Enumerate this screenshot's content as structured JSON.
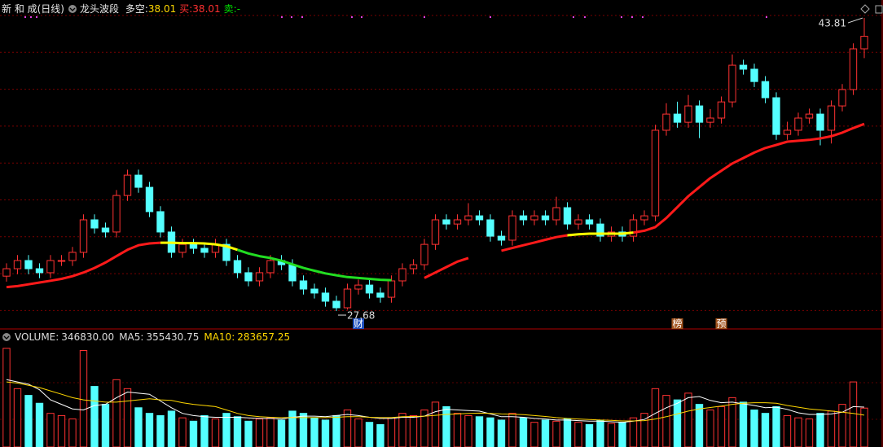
{
  "header": {
    "stock": "新 和 成(日线)",
    "indicator": "龙头波段",
    "items": [
      {
        "label": "多空:",
        "value": "38.01",
        "color": "#ffd700"
      },
      {
        "label": "买:",
        "value": "38.01",
        "color": "#ff3030"
      },
      {
        "label": "卖:",
        "value": "-",
        "color": "#00e000"
      }
    ]
  },
  "chart_data": {
    "type": "candlestick",
    "up_color": "#ff3232",
    "down_color": "#54ffff",
    "ylim": [
      26.74,
      44.35
    ],
    "open": [
      29.6,
      30.01,
      30.46,
      30.01,
      29.79,
      30.46,
      30.46,
      30.91,
      32.7,
      32.25,
      32.03,
      34.04,
      35.16,
      34.49,
      33.15,
      32.03,
      30.91,
      31.35,
      31.13,
      30.91,
      31.35,
      30.46,
      29.79,
      29.34,
      29.79,
      30.46,
      30.23,
      29.34,
      28.89,
      28.67,
      28.22,
      27.86,
      28.89,
      29.11,
      28.67,
      28.44,
      29.34,
      30.01,
      30.23,
      31.35,
      32.7,
      32.47,
      32.7,
      32.92,
      32.7,
      31.8,
      31.58,
      32.92,
      32.7,
      32.92,
      32.7,
      33.37,
      32.47,
      32.7,
      32.47,
      31.8,
      32.03,
      31.8,
      32.7,
      32.92,
      37.63,
      38.52,
      38.07,
      38.97,
      38.07,
      38.3,
      39.19,
      41.21,
      40.99,
      40.31,
      39.42,
      37.4,
      37.63,
      38.3,
      38.52,
      37.63,
      38.97,
      39.87,
      42.11
    ],
    "high": [
      30.31,
      30.76,
      30.76,
      30.31,
      30.76,
      30.76,
      31.21,
      33.0,
      33.0,
      32.55,
      34.34,
      35.46,
      35.46,
      34.79,
      33.45,
      32.33,
      31.65,
      31.65,
      31.43,
      31.65,
      31.65,
      30.76,
      30.09,
      30.09,
      30.76,
      30.76,
      30.53,
      29.64,
      29.19,
      28.97,
      28.52,
      29.19,
      29.41,
      29.41,
      28.97,
      29.64,
      30.31,
      30.53,
      31.65,
      33.0,
      33.0,
      33.0,
      33.62,
      33.22,
      33.0,
      32.1,
      33.22,
      33.22,
      33.22,
      33.22,
      33.97,
      33.67,
      33.0,
      33.0,
      32.77,
      32.33,
      32.33,
      33.0,
      33.22,
      37.93,
      39.12,
      39.2,
      39.57,
      39.27,
      38.8,
      39.49,
      41.8,
      41.51,
      41.29,
      40.61,
      39.72,
      38.1,
      38.6,
      38.82,
      38.82,
      39.27,
      40.17,
      42.41,
      43.81
    ],
    "low": [
      29.3,
      29.71,
      29.71,
      29.49,
      29.49,
      30.16,
      30.16,
      30.61,
      31.95,
      31.73,
      31.73,
      33.74,
      34.19,
      32.85,
      31.73,
      30.61,
      30.61,
      30.83,
      30.61,
      30.61,
      30.16,
      29.49,
      29.04,
      29.04,
      29.49,
      29.93,
      29.04,
      28.59,
      28.37,
      27.92,
      27.68,
      27.76,
      28.59,
      28.37,
      28.14,
      28.14,
      29.04,
      29.71,
      29.93,
      31.05,
      32.17,
      32.17,
      32.4,
      32.4,
      31.5,
      31.28,
      31.28,
      32.4,
      32.4,
      32.4,
      32.4,
      32.17,
      32.17,
      32.17,
      31.5,
      31.5,
      31.5,
      31.5,
      32.4,
      32.62,
      37.33,
      37.77,
      37.77,
      37.2,
      37.77,
      38.0,
      38.89,
      40.69,
      40.01,
      39.12,
      37.1,
      37.1,
      37.33,
      38.0,
      36.8,
      36.9,
      38.67,
      39.57,
      41.6
    ],
    "close": [
      30.01,
      30.46,
      30.01,
      29.79,
      30.46,
      30.46,
      30.91,
      32.7,
      32.25,
      32.03,
      34.04,
      35.16,
      34.49,
      33.15,
      32.03,
      30.91,
      31.35,
      31.13,
      30.91,
      31.35,
      30.46,
      29.79,
      29.34,
      29.79,
      30.46,
      30.23,
      29.34,
      28.89,
      28.67,
      28.22,
      27.86,
      28.89,
      29.11,
      28.67,
      28.44,
      29.34,
      30.01,
      30.23,
      31.35,
      32.7,
      32.47,
      32.7,
      32.92,
      32.7,
      31.8,
      31.58,
      32.92,
      32.7,
      32.92,
      32.7,
      33.37,
      32.47,
      32.7,
      32.47,
      31.8,
      32.03,
      31.8,
      32.7,
      32.92,
      37.63,
      38.52,
      38.07,
      38.97,
      38.07,
      38.3,
      39.19,
      41.21,
      40.99,
      40.31,
      39.42,
      37.4,
      37.63,
      38.3,
      38.52,
      37.63,
      38.97,
      39.87,
      42.11,
      42.8
    ],
    "trend": {
      "values": [
        29.0,
        29.05,
        29.15,
        29.25,
        29.35,
        29.45,
        29.6,
        29.8,
        30.05,
        30.35,
        30.7,
        31.05,
        31.3,
        31.4,
        31.44,
        31.44,
        31.42,
        31.42,
        31.4,
        31.35,
        31.25,
        31.05,
        30.85,
        30.7,
        30.6,
        30.45,
        30.25,
        30.05,
        29.9,
        29.75,
        29.65,
        29.55,
        29.5,
        29.45,
        29.4,
        29.38,
        null,
        null,
        29.5,
        29.8,
        30.1,
        30.4,
        30.6,
        null,
        null,
        31.0,
        31.15,
        31.3,
        31.45,
        31.6,
        31.75,
        31.85,
        31.9,
        31.94,
        31.94,
        31.94,
        31.94,
        32.0,
        32.1,
        32.3,
        32.8,
        33.4,
        34.0,
        34.5,
        35.0,
        35.4,
        35.8,
        36.1,
        36.4,
        36.65,
        36.82,
        37.0,
        37.05,
        37.1,
        37.18,
        37.3,
        37.5,
        37.75,
        37.98
      ],
      "segments": [
        {
          "start": 0,
          "end": 14,
          "color": "#ff1a1a"
        },
        {
          "start": 14,
          "end": 21,
          "color": "#ffff00"
        },
        {
          "start": 21,
          "end": 35,
          "color": "#22dd22"
        },
        {
          "start": 38,
          "end": 42,
          "color": "#ff1a1a"
        },
        {
          "start": 45,
          "end": 51,
          "color": "#ff1a1a"
        },
        {
          "start": 51,
          "end": 57,
          "color": "#ffff00"
        },
        {
          "start": 57,
          "end": 78,
          "color": "#ff1a1a"
        }
      ]
    },
    "annotations": [
      {
        "index": 78,
        "value": 43.81
      },
      {
        "index": 30,
        "value": 27.68
      }
    ],
    "badges": [
      {
        "index": 32,
        "label": "财",
        "color": "#1e4fbf"
      },
      {
        "index": 61,
        "label": "榜",
        "color": "#a0521d"
      },
      {
        "index": 65,
        "label": "预",
        "color": "#a0521d"
      }
    ]
  },
  "volume": {
    "items": [
      {
        "label": "VOLUME:",
        "value": "346830.00",
        "color": "#dddddd"
      },
      {
        "label": "MA5:",
        "value": 355430.75,
        "color": "#dddddd"
      },
      {
        "label": "MA10:",
        "value": 283657.25,
        "color": "#ffd700"
      }
    ],
    "ylim": [
      0,
      900000
    ],
    "values": [
      880000,
      520000,
      460000,
      390000,
      300000,
      280000,
      250000,
      860000,
      540000,
      380000,
      600000,
      520000,
      350000,
      300000,
      280000,
      320000,
      260000,
      230000,
      280000,
      250000,
      300000,
      270000,
      230000,
      250000,
      260000,
      240000,
      320000,
      300000,
      260000,
      240000,
      280000,
      330000,
      250000,
      220000,
      200000,
      260000,
      300000,
      280000,
      330000,
      400000,
      360000,
      300000,
      280000,
      270000,
      260000,
      240000,
      300000,
      260000,
      220000,
      240000,
      230000,
      250000,
      220000,
      200000,
      240000,
      210000,
      220000,
      260000,
      300000,
      520000,
      460000,
      420000,
      480000,
      380000,
      330000,
      360000,
      440000,
      400000,
      330000,
      300000,
      360000,
      280000,
      260000,
      250000,
      300000,
      320000,
      380000,
      580000,
      346830
    ],
    "ma5": {
      "color": "#ffffff",
      "values": [
        600000,
        580000,
        560000,
        510000,
        420000,
        380000,
        340000,
        330000,
        370000,
        380000,
        440000,
        490000,
        480000,
        470000,
        410000,
        350000,
        300000,
        280000,
        270000,
        265000,
        265000,
        265000,
        260000,
        255000,
        255000,
        250000,
        265000,
        275000,
        275000,
        270000,
        280000,
        290000,
        280000,
        265000,
        255000,
        255000,
        265000,
        265000,
        275000,
        315000,
        335000,
        330000,
        325000,
        320000,
        295000,
        270000,
        270000,
        265000,
        255000,
        250000,
        240000,
        240000,
        235000,
        230000,
        230000,
        225000,
        220000,
        230000,
        245000,
        300000,
        350000,
        390000,
        440000,
        450000,
        415000,
        395000,
        400000,
        385000,
        370000,
        350000,
        355000,
        335000,
        305000,
        290000,
        290000,
        295000,
        310000,
        360000,
        355430.75
      ]
    },
    "ma10": {
      "color": "#ffd700",
      "values": [
        580000,
        570000,
        550000,
        530000,
        500000,
        470000,
        440000,
        420000,
        410000,
        400000,
        400000,
        410000,
        420000,
        430000,
        420000,
        415000,
        395000,
        380000,
        370000,
        360000,
        330000,
        300000,
        280000,
        270000,
        265000,
        262000,
        262000,
        262000,
        262000,
        262000,
        265000,
        270000,
        270000,
        265000,
        262000,
        262000,
        270000,
        272000,
        275000,
        282000,
        290000,
        295000,
        300000,
        302000,
        300000,
        295000,
        292000,
        288000,
        280000,
        272000,
        262000,
        255000,
        250000,
        245000,
        240000,
        237000,
        232000,
        232000,
        235000,
        250000,
        270000,
        295000,
        320000,
        340000,
        352000,
        365000,
        380000,
        390000,
        395000,
        395000,
        390000,
        370000,
        355000,
        340000,
        330000,
        320000,
        310000,
        300000,
        283657.25
      ]
    }
  }
}
